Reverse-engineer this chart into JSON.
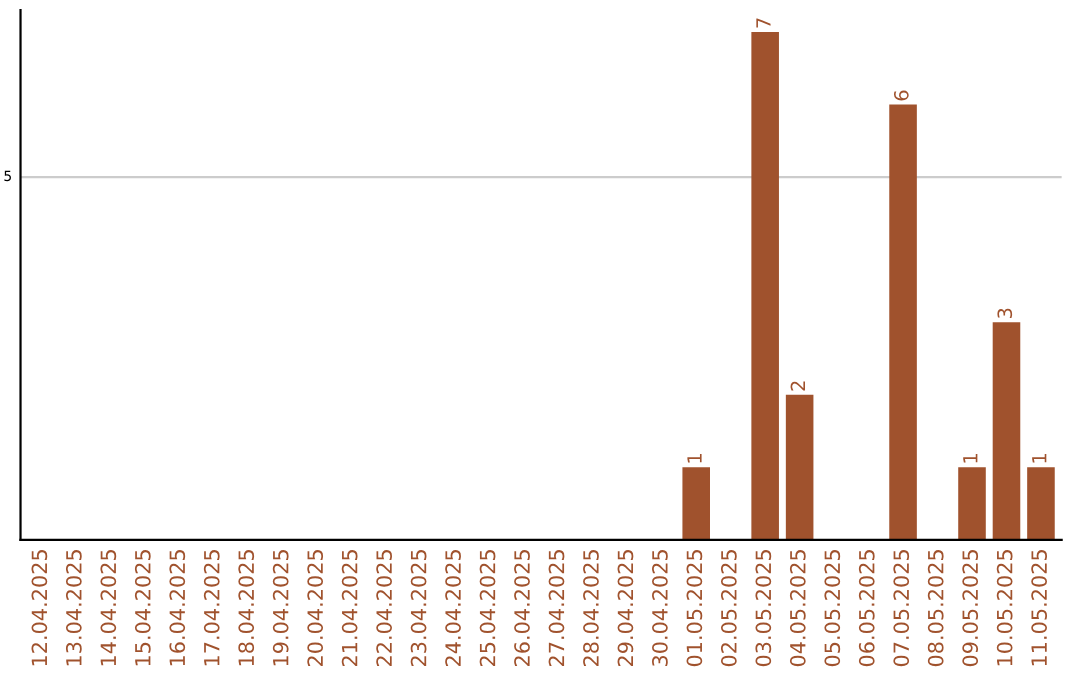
{
  "chart_data": {
    "type": "bar",
    "categories": [
      "12.04.2025",
      "13.04.2025",
      "14.04.2025",
      "15.04.2025",
      "16.04.2025",
      "17.04.2025",
      "18.04.2025",
      "19.04.2025",
      "20.04.2025",
      "21.04.2025",
      "22.04.2025",
      "23.04.2025",
      "24.04.2025",
      "25.04.2025",
      "26.04.2025",
      "27.04.2025",
      "28.04.2025",
      "29.04.2025",
      "30.04.2025",
      "01.05.2025",
      "02.05.2025",
      "03.05.2025",
      "04.05.2025",
      "05.05.2025",
      "06.05.2025",
      "07.05.2025",
      "08.05.2025",
      "09.05.2025",
      "10.05.2025",
      "11.05.2025"
    ],
    "values": [
      null,
      null,
      null,
      null,
      null,
      null,
      null,
      null,
      null,
      null,
      null,
      null,
      null,
      null,
      null,
      null,
      null,
      null,
      null,
      1,
      null,
      7,
      2,
      null,
      null,
      6,
      null,
      1,
      3,
      1
    ],
    "data_labels": true,
    "color": "#a0522d",
    "ylim": [
      0,
      7.3
    ],
    "ref_lines": [
      {
        "axis": "y",
        "value": 5,
        "label": "5",
        "color": "#cccccc"
      }
    ]
  }
}
